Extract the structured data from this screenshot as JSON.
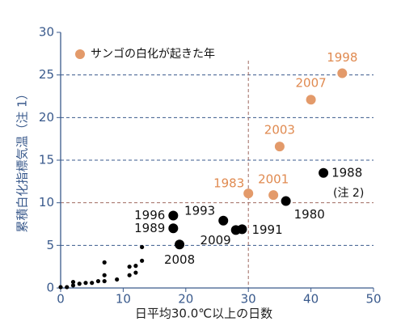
{
  "chart_data": {
    "type": "scatter",
    "xlabel": "日平均30.0℃以上の日数",
    "ylabel": "累積白化指標気温（注 1）",
    "xlim": [
      0,
      50
    ],
    "xticks": [
      0,
      10,
      20,
      30,
      40,
      50
    ],
    "ylim": [
      0,
      30
    ],
    "yticks": [
      0,
      5,
      10,
      15,
      20,
      25,
      30
    ],
    "grid": true,
    "legend": "upper left",
    "annotations": [
      "(注 2)"
    ],
    "series": [
      {
        "name": "サンゴの白化が起きた年",
        "color": "#e39a6a",
        "x": [
          45,
          40,
          35,
          30,
          34
        ],
        "values": [
          25.2,
          22.1,
          16.6,
          11.1,
          10.9
        ],
        "labels": [
          "1998",
          "2007",
          "2003",
          "1983",
          "2001"
        ]
      },
      {
        "color": "#000000",
        "x": [
          42,
          36,
          29,
          28,
          26,
          18,
          18,
          19
        ],
        "values": [
          13.5,
          10.2,
          6.9,
          6.8,
          7.9,
          8.5,
          7.0,
          5.1
        ],
        "labels": [
          "1988",
          "1980",
          "1991",
          "2009",
          "1993",
          "1996",
          "1989",
          "2008"
        ]
      },
      {
        "color": "#000000",
        "x": [
          0,
          1,
          2,
          2,
          3,
          4,
          5,
          6,
          7,
          7,
          7,
          9,
          11,
          11,
          12,
          12,
          13,
          13
        ],
        "values": [
          0.1,
          0.1,
          0.3,
          0.7,
          0.5,
          0.6,
          0.6,
          0.8,
          1.5,
          3.0,
          0.8,
          1.0,
          1.5,
          2.5,
          2.6,
          1.8,
          3.2,
          4.8
        ]
      }
    ]
  }
}
